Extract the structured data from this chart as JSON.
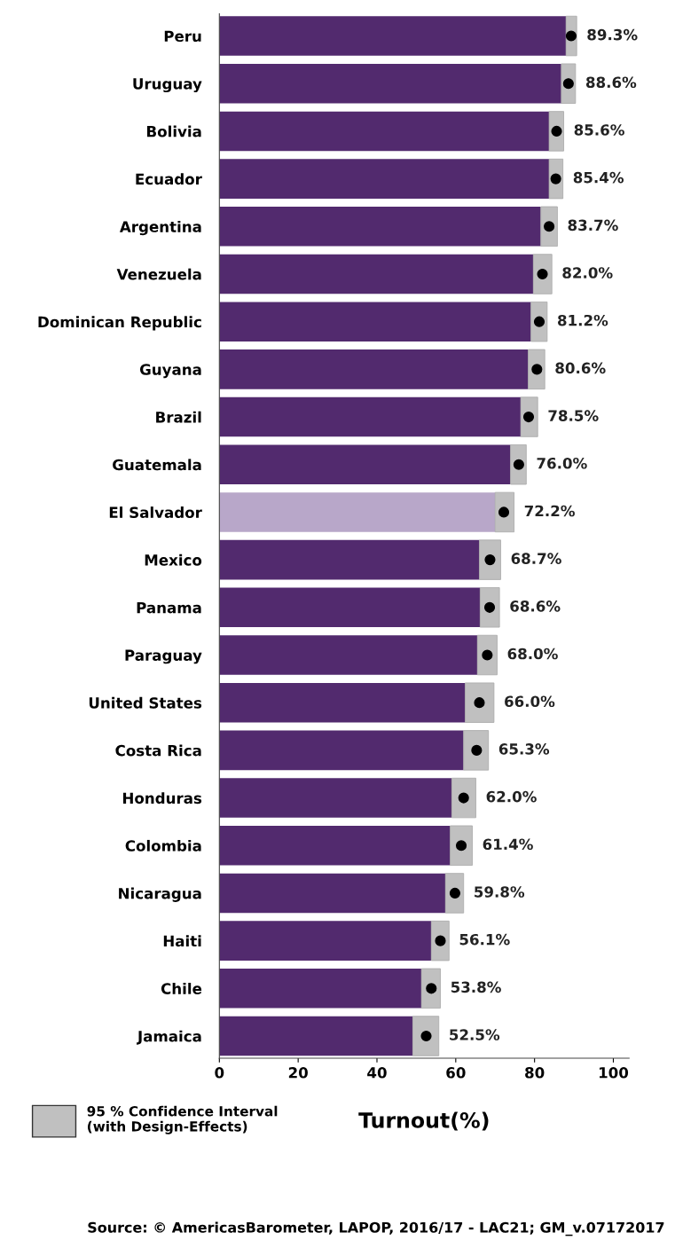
{
  "chart_data": {
    "type": "bar",
    "orientation": "horizontal",
    "stacked": true,
    "xlabel": "Turnout(%)",
    "categories": [
      "Peru",
      "Uruguay",
      "Bolivia",
      "Ecuador",
      "Argentina",
      "Venezuela",
      "Dominican Republic",
      "Guyana",
      "Brazil",
      "Guatemala",
      "El Salvador",
      "Mexico",
      "Panama",
      "Paraguay",
      "United States",
      "Costa Rica",
      "Honduras",
      "Colombia",
      "Nicaragua",
      "Haiti",
      "Chile",
      "Jamaica"
    ],
    "series": [
      {
        "type": "bar",
        "colors": [
          "#522a6e",
          "#522a6e",
          "#522a6e",
          "#522a6e",
          "#522a6e",
          "#522a6e",
          "#522a6e",
          "#522a6e",
          "#522a6e",
          "#522a6e",
          "#b8a7c9",
          "#522a6e",
          "#522a6e",
          "#522a6e",
          "#522a6e",
          "#522a6e",
          "#522a6e",
          "#522a6e",
          "#522a6e",
          "#522a6e",
          "#522a6e",
          "#522a6e"
        ],
        "values": [
          88.0,
          86.8,
          83.7,
          83.7,
          81.6,
          79.7,
          79.1,
          78.4,
          76.5,
          73.9,
          70.0,
          66.0,
          66.2,
          65.5,
          62.4,
          62.0,
          59.0,
          58.6,
          57.4,
          53.8,
          51.3,
          49.1
        ]
      },
      {
        "type": "bar",
        "name": "95 % Confidence Interval\n(with Design-Effects)",
        "color": "#c0c0c0",
        "values": [
          2.7,
          3.6,
          3.7,
          3.5,
          4.2,
          4.7,
          4.1,
          4.2,
          4.3,
          4.0,
          4.8,
          5.4,
          4.9,
          5.0,
          7.3,
          6.3,
          6.1,
          5.6,
          4.6,
          4.5,
          4.8,
          6.6
        ]
      },
      {
        "type": "scatter",
        "color": "#000000",
        "marker": "circle",
        "values": [
          89.3,
          88.6,
          85.6,
          85.4,
          83.7,
          82.0,
          81.2,
          80.6,
          78.5,
          76.0,
          72.2,
          68.7,
          68.6,
          68.0,
          66.0,
          65.3,
          62.0,
          61.4,
          59.8,
          56.1,
          53.8,
          52.5
        ],
        "value_labels": [
          "89.3%",
          "88.6%",
          "85.6%",
          "85.4%",
          "83.7%",
          "82.0%",
          "81.2%",
          "80.6%",
          "78.5%",
          "76.0%",
          "72.2%",
          "68.7%",
          "68.6%",
          "68.0%",
          "66.0%",
          "65.3%",
          "62.0%",
          "61.4%",
          "59.8%",
          "56.1%",
          "53.8%",
          "52.5%"
        ]
      }
    ],
    "xlim": [
      0,
      104
    ],
    "xticks": [
      0,
      20,
      40,
      60,
      80,
      100
    ],
    "grid": false,
    "legend": "bottom left",
    "annotations": [
      "Source: © AmericasBarometer, LAPOP, 2016/17 - LAC21; GM_v.07172017"
    ]
  }
}
